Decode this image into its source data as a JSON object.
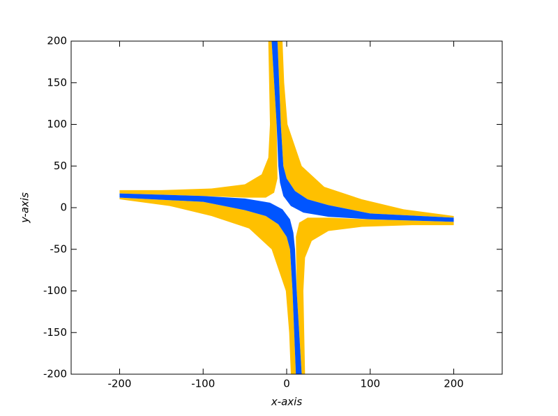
{
  "chart_data": {
    "type": "area",
    "xlabel": "x-axis",
    "ylabel": "y-axis",
    "xlim": [
      -258,
      258
    ],
    "ylim": [
      -200,
      200
    ],
    "xticks": [
      -200,
      -100,
      0,
      100,
      200
    ],
    "yticks": [
      -200,
      -150,
      -100,
      -50,
      0,
      50,
      100,
      150,
      200
    ],
    "grid": false,
    "series": [
      {
        "color": "#ffc000",
        "x": [
          -22,
          -21,
          -20,
          -22,
          -30,
          -50,
          -90,
          -150,
          -200,
          -200,
          -100,
          -50,
          -25,
          -15,
          -11,
          -12,
          -15,
          -18
        ],
        "values": [
          200,
          150,
          100,
          60,
          40,
          28,
          23,
          21,
          21,
          17,
          14,
          12,
          12,
          18,
          35,
          100,
          150,
          200
        ]
      },
      {
        "color": "#ffc000",
        "x": [
          -5,
          -3,
          1,
          18,
          45,
          90,
          140,
          200,
          200,
          100,
          50,
          25,
          10,
          0,
          -4,
          -7,
          -9,
          -11
        ],
        "values": [
          200,
          150,
          100,
          50,
          25,
          10,
          -2,
          -10,
          -12,
          -7,
          3,
          10,
          20,
          35,
          50,
          100,
          150,
          200
        ]
      },
      {
        "color": "#ffc000",
        "x": [
          22,
          21,
          20,
          22,
          30,
          50,
          90,
          150,
          200,
          200,
          100,
          50,
          25,
          15,
          11,
          12,
          15,
          18
        ],
        "values": [
          -200,
          -150,
          -100,
          -60,
          -40,
          -28,
          -23,
          -21,
          -21,
          -17,
          -14,
          -12,
          -12,
          -18,
          -35,
          -100,
          -150,
          -200
        ]
      },
      {
        "color": "#ffc000",
        "x": [
          5,
          3,
          -1,
          -18,
          -45,
          -90,
          -140,
          -200,
          -200,
          -100,
          -50,
          -25,
          -10,
          0,
          4,
          7,
          9,
          11
        ],
        "values": [
          -200,
          -150,
          -100,
          -50,
          -25,
          -10,
          2,
          10,
          12,
          7,
          -3,
          -10,
          -20,
          -35,
          -50,
          -100,
          -150,
          -200
        ]
      },
      {
        "color": "#0055ff",
        "x": [
          -18,
          -15,
          -12,
          -10,
          -8,
          -4,
          5,
          20,
          50,
          100,
          200,
          200,
          100,
          50,
          25,
          10,
          0,
          -4,
          -7,
          -9,
          -11
        ],
        "values": [
          200,
          150,
          100,
          50,
          30,
          14,
          2,
          -6,
          -11,
          -14,
          -17,
          -12,
          -7,
          3,
          10,
          20,
          35,
          50,
          100,
          150,
          200
        ]
      },
      {
        "color": "#0055ff",
        "x": [
          18,
          15,
          12,
          10,
          8,
          4,
          -5,
          -20,
          -50,
          -100,
          -200,
          -200,
          -100,
          -50,
          -25,
          -10,
          0,
          4,
          7,
          9,
          11
        ],
        "values": [
          -200,
          -150,
          -100,
          -50,
          -30,
          -14,
          -2,
          6,
          11,
          14,
          17,
          12,
          7,
          -3,
          -10,
          -20,
          -35,
          -50,
          -100,
          -150,
          -200
        ]
      }
    ]
  }
}
